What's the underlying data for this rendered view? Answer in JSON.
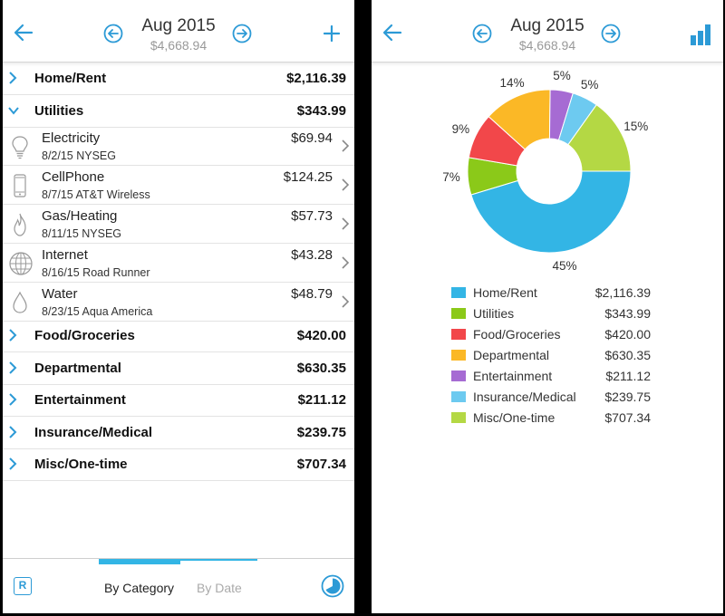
{
  "left": {
    "header": {
      "title": "Aug 2015",
      "subtitle": "$4,668.94"
    },
    "categories_top": [
      {
        "name": "Home/Rent",
        "amount": "$2,116.39",
        "expanded": false
      },
      {
        "name": "Utilities",
        "amount": "$343.99",
        "expanded": true
      }
    ],
    "utilities": [
      {
        "name": "Electricity",
        "meta": "8/2/15 NYSEG",
        "amount": "$69.94",
        "icon": "lightbulb-icon"
      },
      {
        "name": "CellPhone",
        "meta": "8/7/15 AT&T Wireless",
        "amount": "$124.25",
        "icon": "phone-icon"
      },
      {
        "name": "Gas/Heating",
        "meta": "8/11/15 NYSEG",
        "amount": "$57.73",
        "icon": "flame-icon"
      },
      {
        "name": "Internet",
        "meta": "8/16/15 Road Runner",
        "amount": "$43.28",
        "icon": "globe-icon"
      },
      {
        "name": "Water",
        "meta": "8/23/15 Aqua America",
        "amount": "$48.79",
        "icon": "water-drop-icon"
      }
    ],
    "categories_bottom": [
      {
        "name": "Food/Groceries",
        "amount": "$420.00"
      },
      {
        "name": "Departmental",
        "amount": "$630.35"
      },
      {
        "name": "Entertainment",
        "amount": "$211.12"
      },
      {
        "name": "Insurance/Medical",
        "amount": "$239.75"
      },
      {
        "name": "Misc/One-time",
        "amount": "$707.34"
      }
    ],
    "footer": {
      "r_label": "R",
      "tab_category": "By Category",
      "tab_date": "By Date",
      "active_tab": "By Category"
    }
  },
  "right": {
    "header": {
      "title": "Aug 2015",
      "subtitle": "$4,668.94"
    },
    "chart_data": {
      "type": "pie",
      "donut": true,
      "slices": [
        {
          "label": "Home/Rent",
          "value": 2116.39,
          "amount": "$2,116.39",
          "percent": "45%",
          "color": "#33b5e5"
        },
        {
          "label": "Utilities",
          "value": 343.99,
          "amount": "$343.99",
          "percent": "7%",
          "color": "#8bc919"
        },
        {
          "label": "Food/Groceries",
          "value": 420.0,
          "amount": "$420.00",
          "percent": "9%",
          "color": "#f2474a"
        },
        {
          "label": "Departmental",
          "value": 630.35,
          "amount": "$630.35",
          "percent": "14%",
          "color": "#fbb826"
        },
        {
          "label": "Entertainment",
          "value": 211.12,
          "amount": "$211.12",
          "percent": "5%",
          "color": "#a66bd3"
        },
        {
          "label": "Insurance/Medical",
          "value": 239.75,
          "amount": "$239.75",
          "percent": "5%",
          "color": "#6dcaf0"
        },
        {
          "label": "Misc/One-time",
          "value": 707.34,
          "amount": "$707.34",
          "percent": "15%",
          "color": "#b4d844"
        }
      ],
      "legend_position": "bottom"
    }
  },
  "colors": {
    "accent": "#2c9ad6",
    "tab_indicator": "#33b5e5",
    "inactive_tab": "#aaaaaa"
  }
}
